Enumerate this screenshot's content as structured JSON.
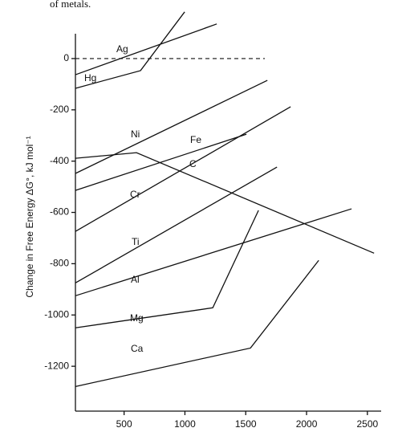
{
  "chart_data": {
    "type": "line",
    "top_text": "of metals.",
    "y_label": "Change in Free Energy ΔG°, kJ mol⁻¹",
    "xlim": [
      100,
      2600
    ],
    "ylim": [
      -1400,
      100
    ],
    "xticks": [
      500,
      1000,
      1500,
      2000,
      2500
    ],
    "yticks": [
      0,
      -200,
      -400,
      -600,
      -800,
      -1000,
      -1200
    ],
    "reference_line": 0,
    "series": [
      {
        "name": "Ag",
        "color": "#111111",
        "x": [
          100,
          1262
        ],
        "values": [
          -63,
          135
        ]
      },
      {
        "name": "Hg",
        "color": "#111111",
        "x": [
          100,
          635,
          998
        ],
        "values": [
          -116,
          -47,
          182
        ]
      },
      {
        "name": "Ni",
        "color": "#111111",
        "x": [
          100,
          1678
        ],
        "values": [
          -448,
          -85
        ]
      },
      {
        "name": "Fe",
        "color": "#111111",
        "x": [
          100,
          1506
        ],
        "values": [
          -514,
          -295
        ]
      },
      {
        "name": "C",
        "color": "#111111",
        "x": [
          100,
          602,
          2555
        ],
        "values": [
          -389,
          -367,
          -759
        ]
      },
      {
        "name": "Cr",
        "color": "#111111",
        "x": [
          100,
          1869
        ],
        "values": [
          -674,
          -188
        ]
      },
      {
        "name": "Ti",
        "color": "#111111",
        "x": [
          100,
          1757
        ],
        "values": [
          -875,
          -423
        ]
      },
      {
        "name": "Al",
        "color": "#111111",
        "x": [
          100,
          2370
        ],
        "values": [
          -925,
          -586
        ]
      },
      {
        "name": "Mg",
        "color": "#111111",
        "x": [
          100,
          1229,
          1605
        ],
        "values": [
          -1050,
          -972,
          -592
        ]
      },
      {
        "name": "Ca",
        "color": "#111111",
        "x": [
          100,
          1539,
          2100
        ],
        "values": [
          -1279,
          -1129,
          -787
        ]
      }
    ]
  }
}
